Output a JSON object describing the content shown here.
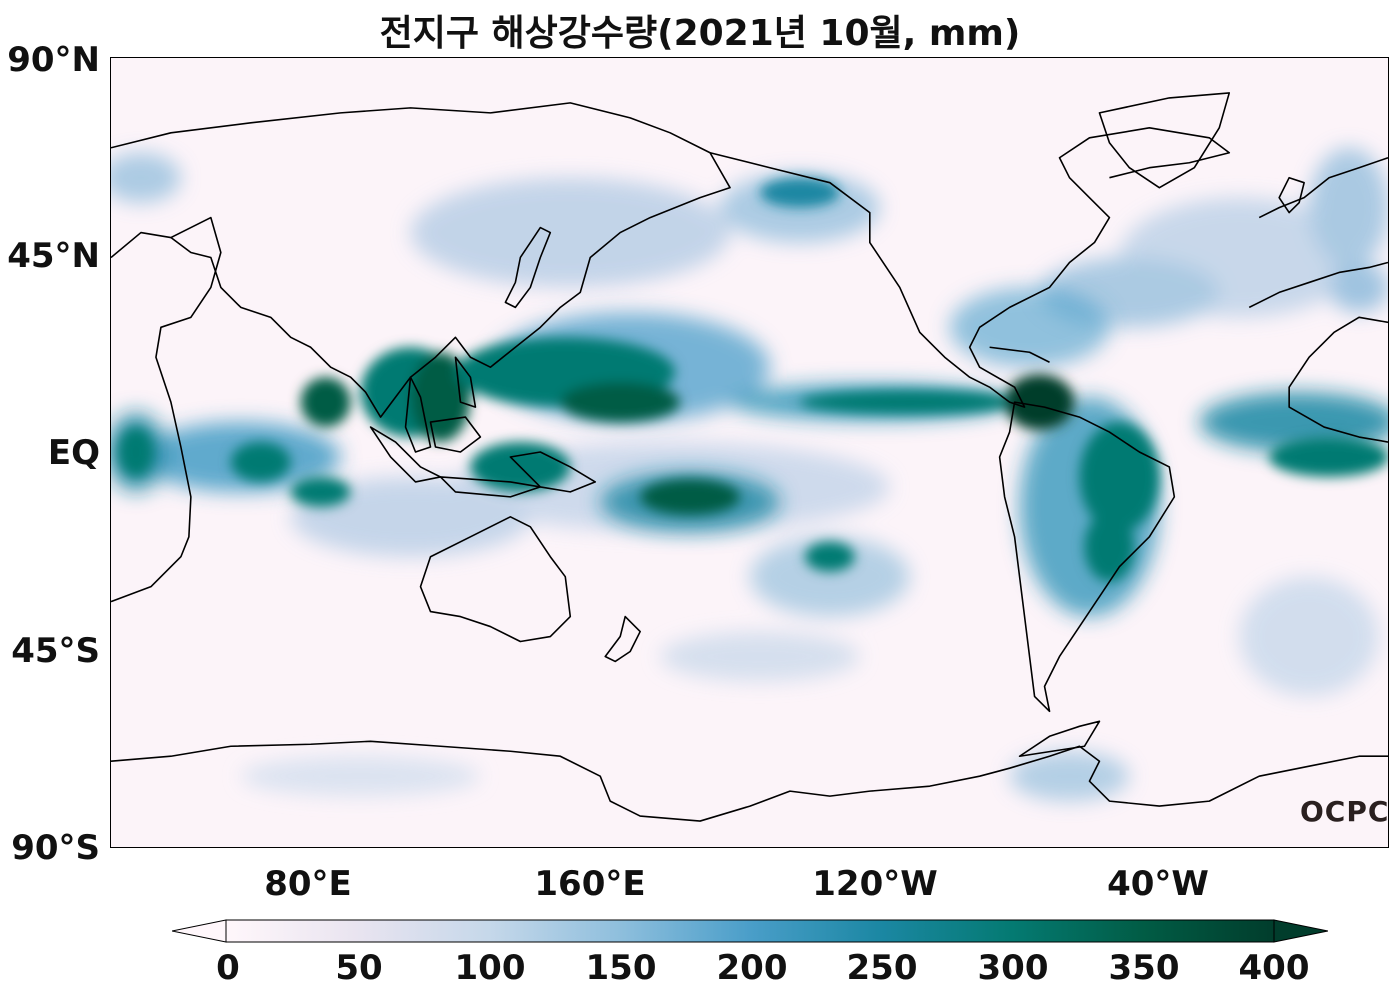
{
  "title": "전지구 해상강수량(2021년 10월, mm)",
  "y_axis": {
    "labels": [
      "90°N",
      "45°N",
      "EQ",
      "45°S",
      "90°S"
    ]
  },
  "x_axis": {
    "labels": [
      "80°E",
      "160°E",
      "120°W",
      "40°W"
    ]
  },
  "colorbar": {
    "ticks": [
      "0",
      "50",
      "100",
      "150",
      "200",
      "250",
      "300",
      "350",
      "400"
    ],
    "colors": [
      "#fff7fb",
      "#e9e4f0",
      "#c6d8ea",
      "#8fbfdd",
      "#4a9ec9",
      "#1b87a3",
      "#047a72",
      "#015c45",
      "#013d2c"
    ]
  },
  "logo": "OCPC"
}
